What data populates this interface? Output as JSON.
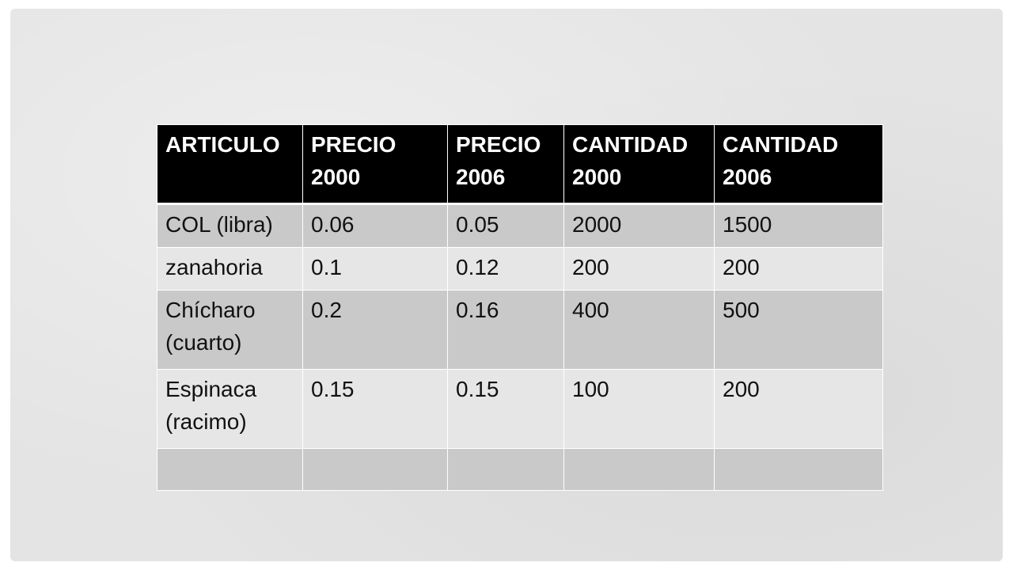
{
  "table": {
    "headers": [
      "ARTICULO",
      "PRECIO 2000",
      "PRECIO 2006",
      "CANTIDAD 2000",
      "CANTIDAD 2006"
    ],
    "rows": [
      [
        "COL (libra)",
        "0.06",
        "0.05",
        "2000",
        "1500"
      ],
      [
        "zanahoria",
        "0.1",
        "0.12",
        "200",
        "200"
      ],
      [
        "Chícharo (cuarto)",
        "0.2",
        "0.16",
        "400",
        "500"
      ],
      [
        "Espinaca (racimo)",
        "0.15",
        "0.15",
        "100",
        "200"
      ],
      [
        "",
        "",
        "",
        "",
        ""
      ]
    ]
  },
  "colors": {
    "header_bg": "#000000",
    "header_text": "#ffffff",
    "row_dark": "#c9c9c9",
    "row_light": "#e6e6e6",
    "slide_bg": "#e4e4e4"
  }
}
